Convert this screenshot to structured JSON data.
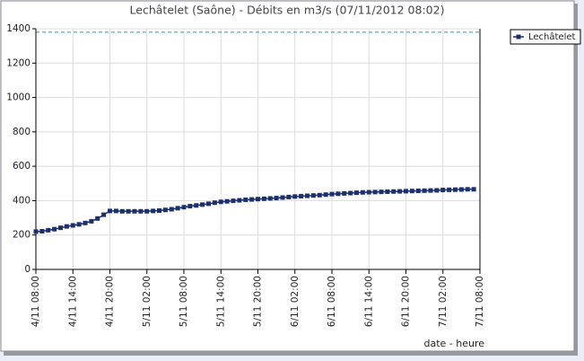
{
  "chart_data": {
    "type": "line",
    "title": "Lechâtelet (Saône) - Débits en m3/s (07/11/2012 08:02)",
    "x_label": "date - heure",
    "categories": [
      "4/11 08:00",
      null,
      null,
      null,
      null,
      null,
      "4/11 14:00",
      null,
      null,
      null,
      null,
      null,
      "4/11 20:00",
      null,
      null,
      null,
      null,
      null,
      "5/11 02:00",
      null,
      null,
      null,
      null,
      null,
      "5/11 08:00",
      null,
      null,
      null,
      null,
      null,
      "5/11 14:00",
      null,
      null,
      null,
      null,
      null,
      "5/11 20:00",
      null,
      null,
      null,
      null,
      null,
      "6/11 02:00",
      null,
      null,
      null,
      null,
      null,
      "6/11 08:00",
      null,
      null,
      null,
      null,
      null,
      "6/11 14:00",
      null,
      null,
      null,
      null,
      null,
      "6/11 20:00",
      null,
      null,
      null,
      null,
      null,
      "7/11 02:00",
      null,
      null,
      null,
      null,
      null,
      "7/11 08:00"
    ],
    "series": [
      {
        "name": "Lechâtelet",
        "color": "#1c2f6e",
        "values": [
          220,
          222,
          228,
          234,
          242,
          250,
          256,
          262,
          270,
          280,
          296,
          318,
          340,
          340,
          338,
          338,
          338,
          338,
          338,
          340,
          342,
          346,
          350,
          356,
          362,
          368,
          372,
          377,
          382,
          388,
          393,
          396,
          399,
          402,
          405,
          407,
          409,
          411,
          413,
          415,
          418,
          421,
          424,
          426,
          428,
          430,
          432,
          435,
          438,
          440,
          442,
          444,
          446,
          448,
          449,
          450,
          451,
          452,
          453,
          454,
          455,
          456,
          457,
          458,
          459,
          460,
          462,
          463,
          464,
          465,
          466,
          466,
          null
        ]
      }
    ],
    "hline": 1380,
    "hline_color": "#1aa6b0",
    "ylim": [
      0,
      1400
    ],
    "yticks": [
      0,
      200,
      400,
      600,
      800,
      1000,
      1200,
      1400
    ],
    "grid": true,
    "legend": "right"
  }
}
